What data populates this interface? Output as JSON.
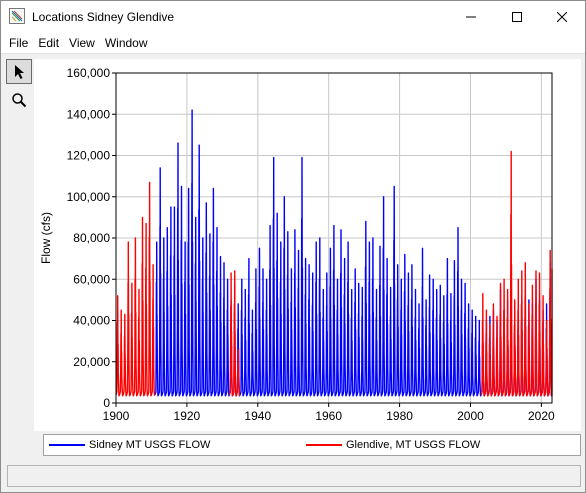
{
  "window": {
    "title": "Locations Sidney Glendive",
    "minimize_icon": "minimize-icon",
    "maximize_icon": "maximize-icon",
    "close_icon": "close-icon"
  },
  "menu": {
    "items": [
      "File",
      "Edit",
      "View",
      "Window"
    ]
  },
  "toolbar": {
    "tools": [
      {
        "icon": "pointer-arrow-icon",
        "active": true
      },
      {
        "icon": "zoom-magnifier-icon",
        "active": false
      }
    ]
  },
  "legend": {
    "entries": [
      {
        "label": "Sidney MT USGS FLOW",
        "color": "#0000ff"
      },
      {
        "label": "Glendive, MT USGS FLOW",
        "color": "#ff0000"
      }
    ]
  },
  "chart_data": {
    "type": "line",
    "title": "",
    "xlabel": "",
    "ylabel": "Flow (cfs)",
    "xlim": [
      1900,
      2023
    ],
    "ylim": [
      0,
      160000
    ],
    "x_ticks": [
      1900,
      1920,
      1940,
      1960,
      1980,
      2000,
      2020
    ],
    "y_ticks": [
      0,
      20000,
      40000,
      60000,
      80000,
      100000,
      120000,
      140000,
      160000
    ],
    "y_tick_labels": [
      "0",
      "20,000",
      "40,000",
      "60,000",
      "80,000",
      "100,000",
      "120,000",
      "140,000",
      "160,000"
    ],
    "grid": true,
    "legend_position": "bottom",
    "series": [
      {
        "name": "Sidney MT USGS FLOW",
        "color": "#0000ff",
        "x": [
          1911,
          1912,
          1913,
          1914,
          1915,
          1916,
          1917,
          1918,
          1919,
          1920,
          1921,
          1922,
          1923,
          1924,
          1925,
          1926,
          1927,
          1928,
          1929,
          1930,
          1931,
          1932,
          1933,
          1934,
          1935,
          1936,
          1937,
          1938,
          1939,
          1940,
          1941,
          1942,
          1943,
          1944,
          1945,
          1946,
          1947,
          1948,
          1949,
          1950,
          1951,
          1952,
          1953,
          1954,
          1955,
          1956,
          1957,
          1958,
          1959,
          1960,
          1961,
          1962,
          1963,
          1964,
          1965,
          1966,
          1967,
          1968,
          1969,
          1970,
          1971,
          1972,
          1973,
          1974,
          1975,
          1976,
          1977,
          1978,
          1979,
          1980,
          1981,
          1982,
          1983,
          1984,
          1985,
          1986,
          1987,
          1988,
          1989,
          1990,
          1991,
          1992,
          1993,
          1994,
          1995,
          1996,
          1997,
          1998,
          1999,
          2000,
          2001,
          2002,
          2003,
          2004,
          2005,
          2006,
          2007,
          2008,
          2009,
          2010,
          2011,
          2012,
          2013,
          2014,
          2015,
          2016,
          2017,
          2018,
          2019,
          2020,
          2021,
          2022
        ],
        "peaks": [
          78000,
          114000,
          80000,
          85000,
          95000,
          95000,
          126000,
          105000,
          78000,
          104000,
          142000,
          90000,
          125000,
          80000,
          97000,
          82000,
          104000,
          85000,
          71000,
          68000,
          60000,
          50000,
          58000,
          48000,
          60000,
          55000,
          70000,
          45000,
          65000,
          75000,
          65000,
          60000,
          86000,
          119000,
          92000,
          78000,
          100000,
          83000,
          65000,
          84000,
          74000,
          119000,
          70000,
          67000,
          63000,
          78000,
          80000,
          55000,
          63000,
          75000,
          86000,
          60000,
          84000,
          70000,
          78000,
          55000,
          65000,
          58000,
          56000,
          88000,
          78000,
          80000,
          55000,
          76000,
          100000,
          70000,
          56000,
          105000,
          67000,
          60000,
          72000,
          63000,
          67000,
          55000,
          48000,
          75000,
          50000,
          62000,
          60000,
          55000,
          57000,
          52000,
          70000,
          53000,
          69000,
          85000,
          60000,
          58000,
          48000,
          45000,
          42000,
          40000,
          38000,
          40000,
          42000,
          45000,
          40000,
          55000,
          45000,
          50000,
          58000,
          45000,
          48000,
          52000,
          55000,
          50000,
          48000,
          60000,
          50000,
          45000,
          48000,
          68000
        ],
        "base_flow": 5000
      },
      {
        "name": "Glendive, MT USGS FLOW",
        "color": "#ff0000",
        "segments": [
          {
            "x": [
              1900,
              1901,
              1902,
              1903,
              1904,
              1905,
              1906,
              1907,
              1908,
              1909,
              1910
            ],
            "peaks": [
              52000,
              45000,
              43000,
              78000,
              58000,
              80000,
              55000,
              90000,
              87000,
              107000,
              67000
            ]
          },
          {
            "x": [
              1932,
              1933,
              1934
            ],
            "peaks": [
              63000,
              64000,
              26000
            ]
          },
          {
            "x": [
              2003,
              2004,
              2005,
              2006,
              2007,
              2008,
              2009,
              2010,
              2011,
              2012,
              2013,
              2014,
              2015,
              2016,
              2017,
              2018,
              2019,
              2020,
              2021,
              2022,
              2023
            ],
            "peaks": [
              53000,
              45000,
              38000,
              48000,
              42000,
              58000,
              60000,
              55000,
              122000,
              50000,
              60000,
              64000,
              68000,
              48000,
              57000,
              64000,
              63000,
              52000,
              40000,
              74000,
              65000
            ]
          }
        ],
        "base_flow": 5000
      }
    ]
  }
}
